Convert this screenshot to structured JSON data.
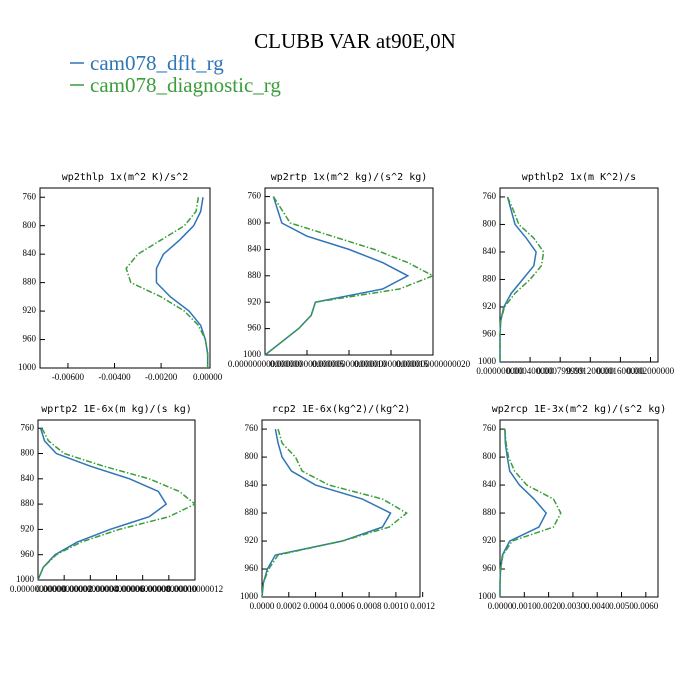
{
  "title": "CLUBB VAR at90E,0N",
  "chart_data": [
    {
      "type": "line",
      "title": "wp2thlp   1x(m^2 K)/s^2",
      "orientation": "vertical-profile",
      "y_reversed": true,
      "y": [
        760,
        780,
        800,
        820,
        840,
        860,
        880,
        900,
        920,
        940,
        960,
        980,
        1000
      ],
      "series": [
        {
          "name": "cam078_dflt_rg",
          "color": "#2e75b6",
          "style": "solid",
          "values": [
            -0.0002,
            -0.0003,
            -0.0006,
            -0.0012,
            -0.0019,
            -0.0022,
            -0.0022,
            -0.0016,
            -0.0008,
            -0.0003,
            -0.0001,
            0,
            0
          ]
        },
        {
          "name": "cam078_diagnostic_rg",
          "color": "#3a9e3a",
          "style": "dashdot",
          "values": [
            -0.0004,
            -0.0005,
            -0.001,
            -0.002,
            -0.003,
            -0.0035,
            -0.0033,
            -0.002,
            -0.001,
            -0.0004,
            -0.0001,
            0,
            0
          ]
        }
      ],
      "xlim": [
        -0.0072,
        0.0001
      ],
      "ylim": [
        747,
        1000
      ],
      "xticks": [
        {
          "value": -0.006,
          "label": "-0.00600"
        },
        {
          "value": -0.004,
          "label": "-0.00400"
        },
        {
          "value": -0.002,
          "label": "-0.00200"
        },
        {
          "value": 0,
          "label": "0.00000"
        }
      ],
      "yticks": [
        760,
        800,
        840,
        880,
        920,
        960,
        1000
      ]
    },
    {
      "type": "line",
      "title": "wp2rtp   1x(m^2 kg)/(s^2 kg)",
      "orientation": "vertical-profile",
      "y_reversed": true,
      "y": [
        760,
        780,
        800,
        820,
        840,
        860,
        880,
        900,
        920,
        940,
        960,
        980,
        1000
      ],
      "series": [
        {
          "name": "cam078_dflt_rg",
          "color": "#2e75b6",
          "style": "solid",
          "values": [
            1e-15,
            1.5e-15,
            2e-15,
            5e-15,
            1e-14,
            1.4e-14,
            1.7e-14,
            1.4e-14,
            6e-15,
            5.5e-15,
            4e-15,
            2e-15,
            0
          ]
        },
        {
          "name": "cam078_diagnostic_rg",
          "color": "#3a9e3a",
          "style": "dashdot",
          "values": [
            1e-15,
            2e-15,
            3e-15,
            8e-15,
            1.3e-14,
            1.7e-14,
            2e-14,
            1.6e-14,
            6e-15,
            5.5e-15,
            4e-15,
            2e-15,
            0
          ]
        }
      ],
      "xlim": [
        0,
        2e-14
      ],
      "ylim": [
        747,
        1000
      ],
      "xticks": [
        {
          "value": 0,
          "label": "0.000000000000000"
        },
        {
          "value": 5e-15,
          "label": "0.000000000000005"
        },
        {
          "value": 1e-14,
          "label": "0.000000000000010"
        },
        {
          "value": 1.5e-14,
          "label": "0.000000000000015"
        },
        {
          "value": 2e-14,
          "label": "0.000000000000020"
        }
      ],
      "yticks": [
        760,
        800,
        840,
        880,
        920,
        960,
        1000
      ]
    },
    {
      "type": "line",
      "title": "wpthlp2   1x(m K^2)/s",
      "orientation": "vertical-profile",
      "y_reversed": true,
      "y": [
        760,
        780,
        800,
        820,
        840,
        860,
        880,
        900,
        920,
        940,
        960,
        980,
        1000
      ],
      "series": [
        {
          "name": "cam078_dflt_rg",
          "color": "#2e75b6",
          "style": "solid",
          "values": [
            0.0001,
            0.00015,
            0.0002,
            0.00035,
            0.00048,
            0.00045,
            0.0003,
            0.00015,
            5e-05,
            1e-05,
            0,
            0,
            0
          ]
        },
        {
          "name": "cam078_diagnostic_rg",
          "color": "#3a9e3a",
          "style": "dashdot",
          "values": [
            0.0001,
            0.00018,
            0.00025,
            0.00045,
            0.00058,
            0.00055,
            0.0004,
            0.0002,
            6e-05,
            1e-05,
            0,
            0,
            0
          ]
        }
      ],
      "xlim": [
        0,
        0.0021
      ],
      "ylim": [
        747,
        1000
      ],
      "xticks": [
        {
          "value": 0,
          "label": "0.000000000"
        },
        {
          "value": 0.0004,
          "label": "0.000400000"
        },
        {
          "value": 0.0008,
          "label": "0.000799999"
        },
        {
          "value": 0.0012,
          "label": "0.001200000"
        },
        {
          "value": 0.0016,
          "label": "0.001600000"
        },
        {
          "value": 0.002,
          "label": "0.002000000"
        }
      ],
      "yticks": [
        760,
        800,
        840,
        880,
        920,
        960,
        1000
      ]
    },
    {
      "type": "line",
      "title": "wprtp2   1E-6x(m kg)/(s kg)",
      "orientation": "vertical-profile",
      "y_reversed": true,
      "y": [
        760,
        780,
        800,
        820,
        840,
        860,
        880,
        900,
        920,
        940,
        960,
        980,
        1000
      ],
      "series": [
        {
          "name": "cam078_dflt_rg",
          "color": "#2e75b6",
          "style": "solid",
          "values": [
            2e-12,
            5e-12,
            1.4e-11,
            4e-11,
            7e-11,
            9.2e-11,
            9.8e-11,
            8.5e-11,
            5.5e-11,
            3e-11,
            1.3e-11,
            4e-12,
            0
          ]
        },
        {
          "name": "cam078_diagnostic_rg",
          "color": "#3a9e3a",
          "style": "dashdot",
          "values": [
            3e-12,
            8e-12,
            2e-11,
            5e-11,
            8.5e-11,
            1.08e-10,
            1.2e-10,
            1e-10,
            6.2e-11,
            3.3e-11,
            1.4e-11,
            4e-12,
            0
          ]
        }
      ],
      "xlim": [
        0,
        1.2e-10
      ],
      "ylim": [
        747,
        1000
      ],
      "xticks": [
        {
          "value": 0,
          "label": "0.00000000000"
        },
        {
          "value": 2e-11,
          "label": "0.00000000002"
        },
        {
          "value": 4e-11,
          "label": "0.00000000004"
        },
        {
          "value": 6e-11,
          "label": "0.00000000006"
        },
        {
          "value": 8e-11,
          "label": "0.00000000008"
        },
        {
          "value": 1e-10,
          "label": "0.00000000010"
        },
        {
          "value": 1.2e-10,
          "label": "0.00000000012"
        }
      ],
      "yticks": [
        760,
        800,
        840,
        880,
        920,
        960,
        1000
      ]
    },
    {
      "type": "line",
      "title": "rcp2   1E-6x(kg^2)/(kg^2)",
      "orientation": "vertical-profile",
      "y_reversed": true,
      "y": [
        760,
        780,
        800,
        820,
        840,
        860,
        880,
        900,
        920,
        940,
        960,
        980,
        1000
      ],
      "series": [
        {
          "name": "cam078_dflt_rg",
          "color": "#2e75b6",
          "style": "solid",
          "values": [
            0.0001,
            0.00012,
            0.00015,
            0.00022,
            0.0004,
            0.00075,
            0.00096,
            0.0009,
            0.0006,
            0.0001,
            4e-05,
            1e-05,
            0
          ]
        },
        {
          "name": "cam078_diagnostic_rg",
          "color": "#3a9e3a",
          "style": "dashdot",
          "values": [
            0.00012,
            0.00015,
            0.00025,
            0.0003,
            0.0005,
            0.0009,
            0.00108,
            0.00095,
            0.0006,
            0.00012,
            5e-05,
            1e-05,
            0
          ]
        }
      ],
      "xlim": [
        0,
        0.00118
      ],
      "ylim": [
        747,
        1000
      ],
      "xticks": [
        {
          "value": 0,
          "label": "0.0000"
        },
        {
          "value": 0.0002,
          "label": "0.0002"
        },
        {
          "value": 0.0004,
          "label": "0.0004"
        },
        {
          "value": 0.0006,
          "label": "0.0006"
        },
        {
          "value": 0.0008,
          "label": "0.0008"
        },
        {
          "value": 0.001,
          "label": "0.0010"
        },
        {
          "value": 0.0012,
          "label": "0.0012"
        }
      ],
      "yticks": [
        760,
        800,
        840,
        880,
        920,
        960,
        1000
      ]
    },
    {
      "type": "line",
      "title": "wp2rcp   1E-3x(m^2 kg)/(s^2 kg)",
      "orientation": "vertical-profile",
      "y_reversed": true,
      "y": [
        760,
        780,
        800,
        820,
        840,
        860,
        880,
        900,
        920,
        940,
        960,
        980,
        1000
      ],
      "series": [
        {
          "name": "cam078_dflt_rg",
          "color": "#2e75b6",
          "style": "solid",
          "values": [
            0.0002,
            0.00022,
            0.0003,
            0.0004,
            0.0008,
            0.0014,
            0.0019,
            0.0016,
            0.0004,
            0.0001,
            2e-05,
            0,
            0
          ]
        },
        {
          "name": "cam078_diagnostic_rg",
          "color": "#3a9e3a",
          "style": "dashdot",
          "values": [
            0.0002,
            0.00025,
            0.00035,
            0.0006,
            0.0011,
            0.0022,
            0.0025,
            0.0022,
            0.0005,
            0.00012,
            3e-05,
            0,
            0
          ]
        }
      ],
      "xlim": [
        0,
        0.0065
      ],
      "ylim": [
        747,
        1000
      ],
      "xticks": [
        {
          "value": 0,
          "label": "0.0000"
        },
        {
          "value": 0.001,
          "label": "0.0010"
        },
        {
          "value": 0.002,
          "label": "0.0020"
        },
        {
          "value": 0.003,
          "label": "0.0030"
        },
        {
          "value": 0.004,
          "label": "0.0040"
        },
        {
          "value": 0.005,
          "label": "0.0050"
        },
        {
          "value": 0.006,
          "label": "0.0060"
        }
      ],
      "yticks": [
        760,
        800,
        840,
        880,
        920,
        960,
        1000
      ]
    }
  ]
}
